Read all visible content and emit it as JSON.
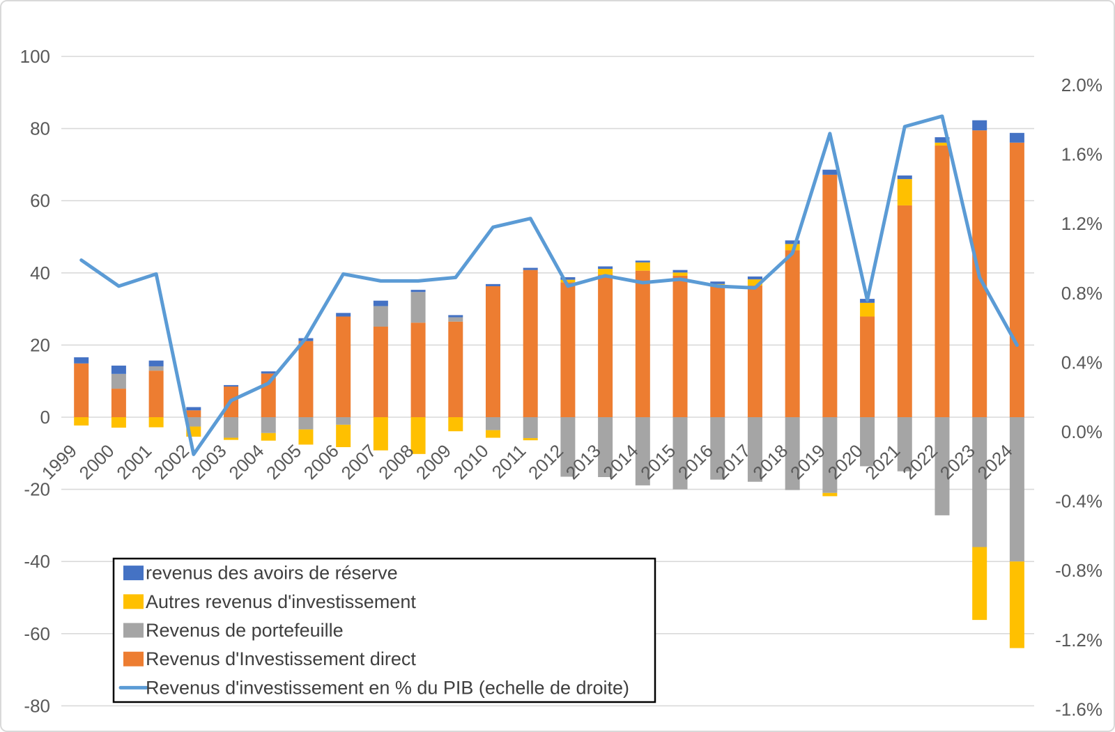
{
  "chart_data": {
    "type": "combo",
    "title": "",
    "categories": [
      "1999",
      "2000",
      "2001",
      "2002",
      "2003",
      "2004",
      "2005",
      "2006",
      "2007",
      "2008",
      "2009",
      "2010",
      "2011",
      "2012",
      "2013",
      "2014",
      "2015",
      "2016",
      "2017",
      "2018",
      "2019",
      "2020",
      "2021",
      "2022",
      "2023",
      "2024"
    ],
    "bar_series": [
      {
        "name": "Revenus d'Investissement direct",
        "color": "#ED7D31",
        "values": [
          14.9,
          7.9,
          12.9,
          1.9,
          8.5,
          12.1,
          21.1,
          27.9,
          25.1,
          26.2,
          26.5,
          36.3,
          40.8,
          37.4,
          39.5,
          40.6,
          39.2,
          36.5,
          36.5,
          46.3,
          67.2,
          27.9,
          58.7,
          75.3,
          79.5,
          76.1
        ]
      },
      {
        "name": "Revenus de portefeuille",
        "color": "#A5A5A5",
        "values": [
          0,
          4.1,
          1.2,
          -2.6,
          -5.7,
          -4.4,
          -3.4,
          -2.1,
          5.7,
          8.5,
          1.2,
          -3.6,
          -5.8,
          -16.5,
          -16.6,
          -18.9,
          -20,
          -17.3,
          -17.9,
          -20.2,
          -21,
          -13.6,
          -15,
          -27.2,
          -36,
          -40
        ]
      },
      {
        "name": "Autres revenus d'investissement",
        "color": "#FFC000",
        "values": [
          -2.3,
          -2.9,
          -2.8,
          -2.8,
          -0.6,
          -2.1,
          -4.2,
          -6.2,
          -9.2,
          -10.2,
          -3.9,
          -2.1,
          -0.6,
          0.7,
          1.6,
          2.3,
          0.9,
          0.4,
          1.7,
          1.7,
          -0.9,
          3.8,
          7.3,
          0.8,
          -20.2,
          -24
        ]
      },
      {
        "name": "revenus des avoirs de réserve",
        "color": "#4472C4",
        "values": [
          1.7,
          2.3,
          1.6,
          0.9,
          0.4,
          0.6,
          0.8,
          1.0,
          1.5,
          0.6,
          0.6,
          0.6,
          0.6,
          0.7,
          0.7,
          0.5,
          0.7,
          0.7,
          0.8,
          1.0,
          1.4,
          1.1,
          1.0,
          1.5,
          2.8,
          2.7
        ]
      }
    ],
    "line_series": {
      "name": "Revenus d'investissement en % du PIB (echelle de droite)",
      "color": "#5B9BD5",
      "axis": "right",
      "values": [
        0.99,
        0.84,
        0.91,
        -0.13,
        0.18,
        0.28,
        0.54,
        0.91,
        0.87,
        0.87,
        0.89,
        1.18,
        1.23,
        0.84,
        0.9,
        0.86,
        0.88,
        0.84,
        0.83,
        1.03,
        1.72,
        0.76,
        1.76,
        1.82,
        0.89,
        0.5
      ]
    },
    "left_axis": {
      "min": -80,
      "max": 100,
      "step": 20,
      "ticks": [
        {
          "value": 100,
          "label": "100"
        },
        {
          "value": 80,
          "label": "80"
        },
        {
          "value": 60,
          "label": "60"
        },
        {
          "value": 40,
          "label": "40"
        },
        {
          "value": 20,
          "label": "20"
        },
        {
          "value": 0,
          "label": "0"
        },
        {
          "value": -20,
          "label": "-20"
        },
        {
          "value": -40,
          "label": "-40"
        },
        {
          "value": -60,
          "label": "-60"
        },
        {
          "value": -80,
          "label": "-80"
        }
      ]
    },
    "right_axis": {
      "min": -1.6,
      "max": 2.0,
      "step": 0.4,
      "ticks": [
        {
          "value": 2.0,
          "label": "2.0%"
        },
        {
          "value": 1.6,
          "label": "1.6%"
        },
        {
          "value": 1.2,
          "label": "1.2%"
        },
        {
          "value": 0.8,
          "label": "0.8%"
        },
        {
          "value": 0.4,
          "label": "0.4%"
        },
        {
          "value": 0.0,
          "label": "0.0%"
        },
        {
          "value": -0.4,
          "label": "-0.4%"
        },
        {
          "value": -0.8,
          "label": "-0.8%"
        },
        {
          "value": -1.2,
          "label": "-1.2%"
        },
        {
          "value": -1.6,
          "label": "-1.6%"
        }
      ]
    },
    "legend": {
      "position": "bottom-left",
      "entries": [
        {
          "label": "revenus des avoirs de réserve",
          "color": "#4472C4",
          "marker": "swatch"
        },
        {
          "label": "Autres revenus d'investissement",
          "color": "#FFC000",
          "marker": "swatch"
        },
        {
          "label": "Revenus de portefeuille",
          "color": "#A5A5A5",
          "marker": "swatch"
        },
        {
          "label": "Revenus d'Investissement direct",
          "color": "#ED7D31",
          "marker": "swatch"
        },
        {
          "label": "Revenus d'investissement en % du PIB (echelle de droite)",
          "color": "#5B9BD5",
          "marker": "line"
        }
      ]
    },
    "style": {
      "gridline_color": "#D9D9D9",
      "axis_text_color": "#595959",
      "legend_text_color": "#3F3F3F",
      "legend_border_color": "#000000",
      "background": "#FFFFFF"
    }
  }
}
